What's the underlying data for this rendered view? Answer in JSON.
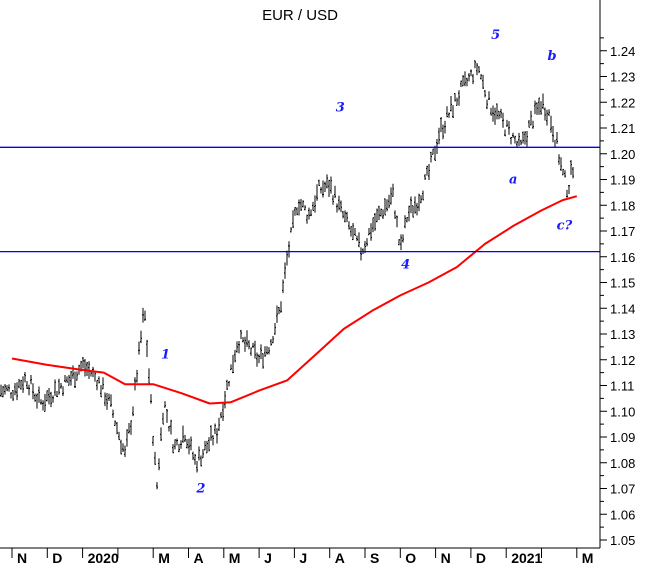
{
  "chart_data": {
    "type": "bar",
    "subtype": "ohlc-price-chart",
    "title": "EUR / USD",
    "y_axis": {
      "position": "right",
      "range": [
        1.05,
        1.25
      ],
      "ticks": [
        "1.05",
        "1.06",
        "1.07",
        "1.08",
        "1.09",
        "1.10",
        "1.11",
        "1.12",
        "1.13",
        "1.14",
        "1.15",
        "1.16",
        "1.17",
        "1.18",
        "1.19",
        "1.20",
        "1.21",
        "1.22",
        "1.23",
        "1.24"
      ]
    },
    "x_axis": {
      "months": [
        {
          "label": "N",
          "index": 0
        },
        {
          "label": "D",
          "index": 1
        },
        {
          "label": "2020",
          "index": 2
        },
        {
          "label": "M",
          "index": 4
        },
        {
          "label": "A",
          "index": 5
        },
        {
          "label": "M",
          "index": 6
        },
        {
          "label": "J",
          "index": 7
        },
        {
          "label": "J",
          "index": 8
        },
        {
          "label": "A",
          "index": 9
        },
        {
          "label": "S",
          "index": 10
        },
        {
          "label": "O",
          "index": 11
        },
        {
          "label": "N",
          "index": 12
        },
        {
          "label": "D",
          "index": 13
        },
        {
          "label": "2021",
          "index": 14
        },
        {
          "label": "M",
          "index": 16
        }
      ]
    },
    "horizontal_lines": [
      1.2025,
      1.162
    ],
    "price_points": [
      [
        0,
        1.108
      ],
      [
        0.4,
        1.113
      ],
      [
        0.8,
        1.103
      ],
      [
        1.2,
        1.108
      ],
      [
        1.6,
        1.112
      ],
      [
        2.0,
        1.118
      ],
      [
        2.4,
        1.113
      ],
      [
        2.8,
        1.102
      ],
      [
        3.2,
        1.083
      ],
      [
        3.4,
        1.098
      ],
      [
        3.6,
        1.122
      ],
      [
        3.75,
        1.14
      ],
      [
        3.95,
        1.1
      ],
      [
        4.1,
        1.07
      ],
      [
        4.3,
        1.104
      ],
      [
        4.6,
        1.086
      ],
      [
        4.9,
        1.092
      ],
      [
        5.2,
        1.08
      ],
      [
        5.5,
        1.086
      ],
      [
        5.8,
        1.092
      ],
      [
        6.1,
        1.11
      ],
      [
        6.4,
        1.128
      ],
      [
        6.7,
        1.125
      ],
      [
        7.0,
        1.12
      ],
      [
        7.3,
        1.126
      ],
      [
        7.6,
        1.14
      ],
      [
        7.8,
        1.16
      ],
      [
        8.1,
        1.182
      ],
      [
        8.4,
        1.176
      ],
      [
        8.7,
        1.186
      ],
      [
        9.0,
        1.188
      ],
      [
        9.3,
        1.178
      ],
      [
        9.6,
        1.17
      ],
      [
        9.9,
        1.162
      ],
      [
        10.2,
        1.172
      ],
      [
        10.5,
        1.178
      ],
      [
        10.8,
        1.184
      ],
      [
        11.0,
        1.162
      ],
      [
        11.2,
        1.176
      ],
      [
        11.5,
        1.182
      ],
      [
        11.8,
        1.192
      ],
      [
        12.1,
        1.208
      ],
      [
        12.4,
        1.216
      ],
      [
        12.7,
        1.224
      ],
      [
        13.0,
        1.23
      ],
      [
        13.2,
        1.234
      ],
      [
        13.5,
        1.22
      ],
      [
        13.8,
        1.214
      ],
      [
        14.1,
        1.208
      ],
      [
        14.4,
        1.202
      ],
      [
        14.7,
        1.212
      ],
      [
        15.0,
        1.22
      ],
      [
        15.2,
        1.216
      ],
      [
        15.4,
        1.206
      ],
      [
        15.6,
        1.192
      ],
      [
        15.75,
        1.186
      ],
      [
        15.9,
        1.196
      ]
    ],
    "moving_average": [
      [
        0,
        1.1205
      ],
      [
        1,
        1.118
      ],
      [
        2,
        1.116
      ],
      [
        2.6,
        1.115
      ],
      [
        3.2,
        1.1105
      ],
      [
        4.0,
        1.1105
      ],
      [
        4.8,
        1.107
      ],
      [
        5.6,
        1.103
      ],
      [
        6.2,
        1.1035
      ],
      [
        7.0,
        1.108
      ],
      [
        7.8,
        1.112
      ],
      [
        8.6,
        1.122
      ],
      [
        9.4,
        1.132
      ],
      [
        10.2,
        1.139
      ],
      [
        11.0,
        1.145
      ],
      [
        11.8,
        1.15
      ],
      [
        12.6,
        1.156
      ],
      [
        13.4,
        1.165
      ],
      [
        14.2,
        1.172
      ],
      [
        15.0,
        1.178
      ],
      [
        15.6,
        1.182
      ],
      [
        16.0,
        1.1835
      ]
    ],
    "annotations": [
      {
        "text": "1",
        "x": 4.35,
        "y": 1.1205
      },
      {
        "text": "2",
        "x": 5.35,
        "y": 1.0685
      },
      {
        "text": "3",
        "x": 9.3,
        "y": 1.2165
      },
      {
        "text": "4",
        "x": 11.15,
        "y": 1.1555
      },
      {
        "text": "5",
        "x": 13.7,
        "y": 1.2445
      },
      {
        "text": "a",
        "x": 14.2,
        "y": 1.1885
      },
      {
        "text": "b",
        "x": 15.3,
        "y": 1.2365
      },
      {
        "text": "c?",
        "x": 15.65,
        "y": 1.1705
      }
    ],
    "colors": {
      "price": "#000000",
      "moving_average": "#ff0000",
      "horizontal_lines": "#0000ff",
      "annotations": "#1a1aff"
    }
  }
}
